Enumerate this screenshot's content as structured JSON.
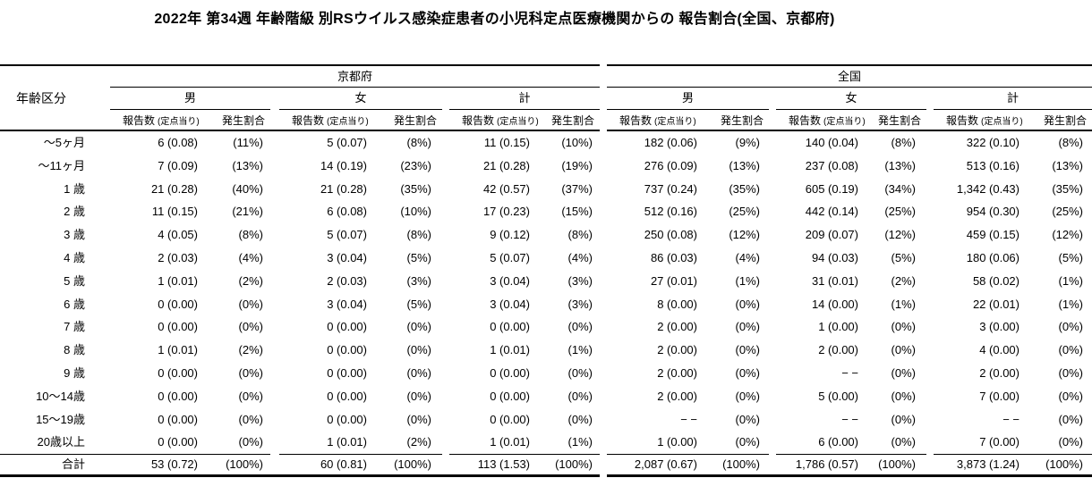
{
  "title": "2022年 第34週 年齢階級 別RSウイルス感染症患者の小児科定点医療機関からの 報告割合(全国、京都府)",
  "colors": {
    "text": "#000000",
    "background": "#ffffff",
    "line": "#000000"
  },
  "table": {
    "corner_header": "年齢区分",
    "regions": [
      "京都府",
      "全国"
    ],
    "genders": [
      "男",
      "女",
      "計"
    ],
    "sub": {
      "report": "報告数",
      "report_unit": "(定点当り)",
      "rate": "発生割合"
    },
    "rows": [
      {
        "age": "～5ヶ月",
        "cells": [
          "6 (0.08)",
          "(11%)",
          "5 (0.07)",
          "(8%)",
          "11 (0.15)",
          "(10%)",
          "182 (0.06)",
          "(9%)",
          "140 (0.04)",
          "(8%)",
          "322 (0.10)",
          "(8%)"
        ]
      },
      {
        "age": "～11ヶ月",
        "cells": [
          "7 (0.09)",
          "(13%)",
          "14 (0.19)",
          "(23%)",
          "21 (0.28)",
          "(19%)",
          "276 (0.09)",
          "(13%)",
          "237 (0.08)",
          "(13%)",
          "513 (0.16)",
          "(13%)"
        ]
      },
      {
        "age": "1 歳",
        "cells": [
          "21 (0.28)",
          "(40%)",
          "21 (0.28)",
          "(35%)",
          "42 (0.57)",
          "(37%)",
          "737 (0.24)",
          "(35%)",
          "605 (0.19)",
          "(34%)",
          "1,342 (0.43)",
          "(35%)"
        ]
      },
      {
        "age": "2 歳",
        "cells": [
          "11 (0.15)",
          "(21%)",
          "6 (0.08)",
          "(10%)",
          "17 (0.23)",
          "(15%)",
          "512 (0.16)",
          "(25%)",
          "442 (0.14)",
          "(25%)",
          "954 (0.30)",
          "(25%)"
        ]
      },
      {
        "age": "3 歳",
        "cells": [
          "4 (0.05)",
          "(8%)",
          "5 (0.07)",
          "(8%)",
          "9 (0.12)",
          "(8%)",
          "250 (0.08)",
          "(12%)",
          "209 (0.07)",
          "(12%)",
          "459 (0.15)",
          "(12%)"
        ]
      },
      {
        "age": "4 歳",
        "cells": [
          "2 (0.03)",
          "(4%)",
          "3 (0.04)",
          "(5%)",
          "5 (0.07)",
          "(4%)",
          "86 (0.03)",
          "(4%)",
          "94 (0.03)",
          "(5%)",
          "180 (0.06)",
          "(5%)"
        ]
      },
      {
        "age": "5 歳",
        "cells": [
          "1 (0.01)",
          "(2%)",
          "2 (0.03)",
          "(3%)",
          "3 (0.04)",
          "(3%)",
          "27 (0.01)",
          "(1%)",
          "31 (0.01)",
          "(2%)",
          "58 (0.02)",
          "(1%)"
        ]
      },
      {
        "age": "6 歳",
        "cells": [
          "0 (0.00)",
          "(0%)",
          "3 (0.04)",
          "(5%)",
          "3 (0.04)",
          "(3%)",
          "8 (0.00)",
          "(0%)",
          "14 (0.00)",
          "(1%)",
          "22 (0.01)",
          "(1%)"
        ]
      },
      {
        "age": "7 歳",
        "cells": [
          "0 (0.00)",
          "(0%)",
          "0 (0.00)",
          "(0%)",
          "0 (0.00)",
          "(0%)",
          "2 (0.00)",
          "(0%)",
          "1 (0.00)",
          "(0%)",
          "3 (0.00)",
          "(0%)"
        ]
      },
      {
        "age": "8 歳",
        "cells": [
          "1 (0.01)",
          "(2%)",
          "0 (0.00)",
          "(0%)",
          "1 (0.01)",
          "(1%)",
          "2 (0.00)",
          "(0%)",
          "2 (0.00)",
          "(0%)",
          "4 (0.00)",
          "(0%)"
        ]
      },
      {
        "age": "9 歳",
        "cells": [
          "0 (0.00)",
          "(0%)",
          "0 (0.00)",
          "(0%)",
          "0 (0.00)",
          "(0%)",
          "2 (0.00)",
          "(0%)",
          "− −",
          "(0%)",
          "2 (0.00)",
          "(0%)"
        ]
      },
      {
        "age": "10～14歳",
        "cells": [
          "0 (0.00)",
          "(0%)",
          "0 (0.00)",
          "(0%)",
          "0 (0.00)",
          "(0%)",
          "2 (0.00)",
          "(0%)",
          "5 (0.00)",
          "(0%)",
          "7 (0.00)",
          "(0%)"
        ]
      },
      {
        "age": "15～19歳",
        "cells": [
          "0 (0.00)",
          "(0%)",
          "0 (0.00)",
          "(0%)",
          "0 (0.00)",
          "(0%)",
          "− −",
          "(0%)",
          "− −",
          "(0%)",
          "− −",
          "(0%)"
        ]
      },
      {
        "age": "20歳以上",
        "cells": [
          "0 (0.00)",
          "(0%)",
          "1 (0.01)",
          "(2%)",
          "1 (0.01)",
          "(1%)",
          "1 (0.00)",
          "(0%)",
          "6 (0.00)",
          "(0%)",
          "7 (0.00)",
          "(0%)"
        ]
      }
    ],
    "total": {
      "age": "合計",
      "cells": [
        "53 (0.72)",
        "(100%)",
        "60 (0.81)",
        "(100%)",
        "113 (1.53)",
        "(100%)",
        "2,087 (0.67)",
        "(100%)",
        "1,786 (0.57)",
        "(100%)",
        "3,873 (1.24)",
        "(100%)"
      ]
    }
  }
}
